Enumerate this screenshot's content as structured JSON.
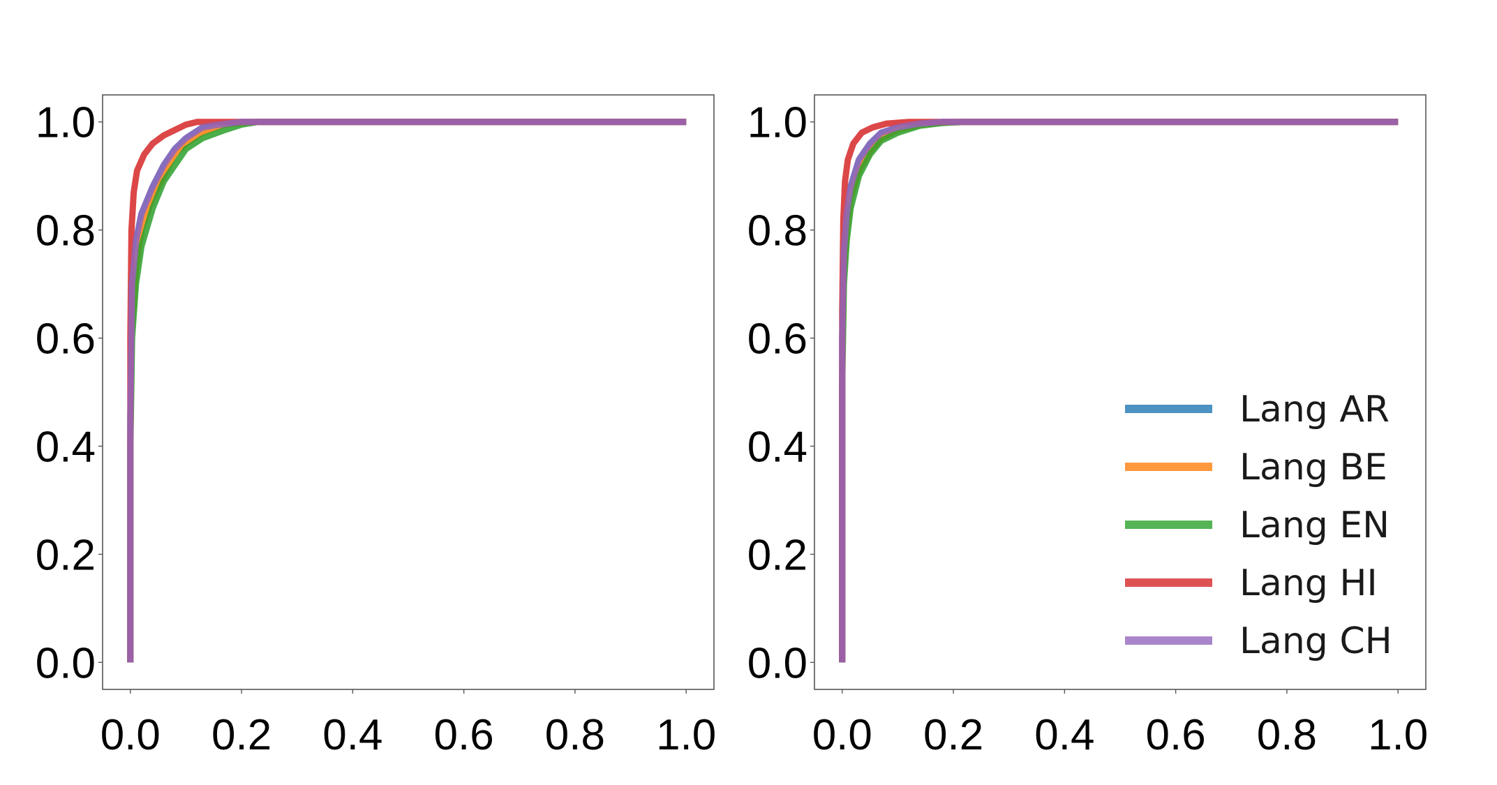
{
  "chart_data": [
    {
      "type": "line",
      "title": "",
      "xlabel": "",
      "ylabel": "",
      "xlim": [
        -0.05,
        1.05
      ],
      "ylim": [
        -0.05,
        1.05
      ],
      "xticks": [
        "0.0",
        "0.2",
        "0.4",
        "0.6",
        "0.8",
        "1.0"
      ],
      "yticks": [
        "0.0",
        "0.2",
        "0.4",
        "0.6",
        "0.8",
        "1.0"
      ],
      "grid": false,
      "legend": null,
      "series": [
        {
          "color": "#1f77b4",
          "points": [
            [
              0.0,
              0.0
            ],
            [
              0.0,
              0.45
            ],
            [
              0.003,
              0.7
            ],
            [
              0.01,
              0.78
            ],
            [
              0.02,
              0.83
            ],
            [
              0.04,
              0.88
            ],
            [
              0.06,
              0.92
            ],
            [
              0.08,
              0.95
            ],
            [
              0.1,
              0.97
            ],
            [
              0.13,
              0.99
            ],
            [
              0.16,
              0.995
            ],
            [
              0.2,
              1.0
            ],
            [
              1.0,
              1.0
            ]
          ]
        },
        {
          "color": "#ff7f0e",
          "points": [
            [
              0.0,
              0.0
            ],
            [
              0.0,
              0.42
            ],
            [
              0.003,
              0.62
            ],
            [
              0.01,
              0.73
            ],
            [
              0.02,
              0.8
            ],
            [
              0.04,
              0.86
            ],
            [
              0.06,
              0.9
            ],
            [
              0.08,
              0.94
            ],
            [
              0.1,
              0.96
            ],
            [
              0.13,
              0.98
            ],
            [
              0.17,
              0.995
            ],
            [
              0.22,
              1.0
            ],
            [
              1.0,
              1.0
            ]
          ]
        },
        {
          "color": "#2ca02c",
          "points": [
            [
              0.0,
              0.0
            ],
            [
              0.0,
              0.4
            ],
            [
              0.003,
              0.6
            ],
            [
              0.01,
              0.7
            ],
            [
              0.02,
              0.77
            ],
            [
              0.04,
              0.84
            ],
            [
              0.06,
              0.89
            ],
            [
              0.08,
              0.92
            ],
            [
              0.1,
              0.95
            ],
            [
              0.13,
              0.97
            ],
            [
              0.17,
              0.985
            ],
            [
              0.2,
              0.995
            ],
            [
              0.23,
              1.0
            ],
            [
              1.0,
              1.0
            ]
          ]
        },
        {
          "color": "#d62728",
          "points": [
            [
              0.0,
              0.0
            ],
            [
              0.0,
              0.6
            ],
            [
              0.002,
              0.8
            ],
            [
              0.006,
              0.87
            ],
            [
              0.012,
              0.91
            ],
            [
              0.025,
              0.94
            ],
            [
              0.04,
              0.96
            ],
            [
              0.06,
              0.975
            ],
            [
              0.08,
              0.985
            ],
            [
              0.1,
              0.995
            ],
            [
              0.12,
              1.0
            ],
            [
              1.0,
              1.0
            ]
          ]
        },
        {
          "color": "#9467bd",
          "points": [
            [
              0.0,
              0.0
            ],
            [
              0.0,
              0.45
            ],
            [
              0.003,
              0.7
            ],
            [
              0.01,
              0.78
            ],
            [
              0.02,
              0.83
            ],
            [
              0.04,
              0.88
            ],
            [
              0.06,
              0.92
            ],
            [
              0.08,
              0.95
            ],
            [
              0.1,
              0.97
            ],
            [
              0.13,
              0.99
            ],
            [
              0.16,
              0.995
            ],
            [
              0.2,
              1.0
            ],
            [
              1.0,
              1.0
            ]
          ]
        }
      ]
    },
    {
      "type": "line",
      "title": "",
      "xlabel": "",
      "ylabel": "",
      "xlim": [
        -0.05,
        1.05
      ],
      "ylim": [
        -0.05,
        1.05
      ],
      "xticks": [
        "0.0",
        "0.2",
        "0.4",
        "0.6",
        "0.8",
        "1.0"
      ],
      "yticks": [
        "0.0",
        "0.2",
        "0.4",
        "0.6",
        "0.8",
        "1.0"
      ],
      "grid": false,
      "legend": {
        "position": "lower-right",
        "entries": [
          {
            "label": "Lang AR",
            "color": "#1f77b4"
          },
          {
            "label": "Lang BE",
            "color": "#ff7f0e"
          },
          {
            "label": "Lang EN",
            "color": "#2ca02c"
          },
          {
            "label": "Lang HI",
            "color": "#d62728"
          },
          {
            "label": "Lang CH",
            "color": "#9467bd"
          }
        ]
      },
      "series": [
        {
          "name": "Lang AR",
          "color": "#1f77b4",
          "points": [
            [
              0.0,
              0.0
            ],
            [
              0.0,
              0.6
            ],
            [
              0.003,
              0.76
            ],
            [
              0.008,
              0.83
            ],
            [
              0.015,
              0.88
            ],
            [
              0.03,
              0.93
            ],
            [
              0.05,
              0.96
            ],
            [
              0.07,
              0.98
            ],
            [
              0.1,
              0.99
            ],
            [
              0.14,
              0.997
            ],
            [
              0.18,
              1.0
            ],
            [
              1.0,
              1.0
            ]
          ]
        },
        {
          "name": "Lang BE",
          "color": "#ff7f0e",
          "points": [
            [
              0.0,
              0.0
            ],
            [
              0.0,
              0.55
            ],
            [
              0.003,
              0.72
            ],
            [
              0.008,
              0.8
            ],
            [
              0.015,
              0.86
            ],
            [
              0.03,
              0.91
            ],
            [
              0.05,
              0.945
            ],
            [
              0.07,
              0.97
            ],
            [
              0.1,
              0.985
            ],
            [
              0.14,
              0.995
            ],
            [
              0.2,
              1.0
            ],
            [
              1.0,
              1.0
            ]
          ]
        },
        {
          "name": "Lang EN",
          "color": "#2ca02c",
          "points": [
            [
              0.0,
              0.0
            ],
            [
              0.0,
              0.52
            ],
            [
              0.003,
              0.7
            ],
            [
              0.008,
              0.78
            ],
            [
              0.015,
              0.84
            ],
            [
              0.03,
              0.9
            ],
            [
              0.05,
              0.94
            ],
            [
              0.07,
              0.965
            ],
            [
              0.1,
              0.98
            ],
            [
              0.14,
              0.993
            ],
            [
              0.18,
              0.998
            ],
            [
              0.22,
              1.0
            ],
            [
              1.0,
              1.0
            ]
          ]
        },
        {
          "name": "Lang HI",
          "color": "#d62728",
          "points": [
            [
              0.0,
              0.0
            ],
            [
              0.0,
              0.65
            ],
            [
              0.002,
              0.82
            ],
            [
              0.005,
              0.89
            ],
            [
              0.01,
              0.93
            ],
            [
              0.02,
              0.96
            ],
            [
              0.035,
              0.98
            ],
            [
              0.055,
              0.99
            ],
            [
              0.08,
              0.997
            ],
            [
              0.12,
              1.0
            ],
            [
              1.0,
              1.0
            ]
          ]
        },
        {
          "name": "Lang CH",
          "color": "#9467bd",
          "points": [
            [
              0.0,
              0.0
            ],
            [
              0.0,
              0.6
            ],
            [
              0.003,
              0.76
            ],
            [
              0.008,
              0.83
            ],
            [
              0.015,
              0.88
            ],
            [
              0.03,
              0.93
            ],
            [
              0.05,
              0.96
            ],
            [
              0.07,
              0.98
            ],
            [
              0.1,
              0.99
            ],
            [
              0.14,
              0.997
            ],
            [
              0.18,
              1.0
            ],
            [
              1.0,
              1.0
            ]
          ]
        }
      ]
    }
  ]
}
